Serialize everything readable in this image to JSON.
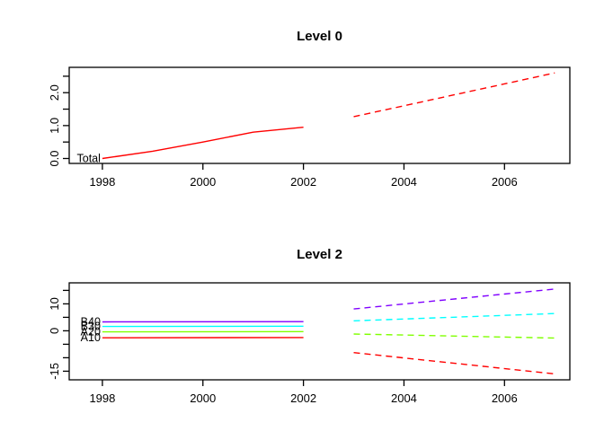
{
  "page": {
    "background": "#ffffff",
    "frame_color": "#000000",
    "text_color": "#000000"
  },
  "chart_data": [
    {
      "type": "line",
      "title": "Level 0",
      "xlabel": "",
      "ylabel": "",
      "grid": false,
      "legend_position": "none",
      "xlim": [
        1997.34,
        2007.3
      ],
      "ylim": [
        -0.15,
        2.77
      ],
      "x_ticks": [
        {
          "v": 1998,
          "label": "1998"
        },
        {
          "v": 2000,
          "label": "2000"
        },
        {
          "v": 2002,
          "label": "2002"
        },
        {
          "v": 2004,
          "label": "2004"
        },
        {
          "v": 2006,
          "label": "2006"
        }
      ],
      "y_ticks": [
        {
          "v": 0.0,
          "label": "0.0"
        },
        {
          "v": 0.5,
          "label": ""
        },
        {
          "v": 1.0,
          "label": "1.0"
        },
        {
          "v": 1.5,
          "label": ""
        },
        {
          "v": 2.0,
          "label": "2.0"
        },
        {
          "v": 2.5,
          "label": ""
        }
      ],
      "series": [
        {
          "name": "Total",
          "color": "#FF0000",
          "history_x": [
            1998,
            1999,
            2000,
            2001,
            2002
          ],
          "history_y": [
            0.0,
            0.22,
            0.5,
            0.8,
            0.95
          ],
          "forecast_x": [
            2003,
            2007
          ],
          "forecast_y": [
            1.27,
            2.6
          ]
        }
      ]
    },
    {
      "type": "line",
      "title": "Level 2",
      "xlabel": "",
      "ylabel": "",
      "grid": false,
      "legend_position": "none",
      "xlim": [
        1997.34,
        2007.3
      ],
      "ylim": [
        -18.2,
        17.8
      ],
      "x_ticks": [
        {
          "v": 1998,
          "label": "1998"
        },
        {
          "v": 2000,
          "label": "2000"
        },
        {
          "v": 2002,
          "label": "2002"
        },
        {
          "v": 2004,
          "label": "2004"
        },
        {
          "v": 2006,
          "label": "2006"
        }
      ],
      "y_ticks": [
        {
          "v": -15,
          "label": "-15"
        },
        {
          "v": -10,
          "label": ""
        },
        {
          "v": -5,
          "label": ""
        },
        {
          "v": 0,
          "label": "0"
        },
        {
          "v": 5,
          "label": ""
        },
        {
          "v": 10,
          "label": "10"
        },
        {
          "v": 15,
          "label": ""
        }
      ],
      "series": [
        {
          "name": "A10",
          "color": "#FF0000",
          "history_x": [
            1998,
            2002
          ],
          "history_y": [
            -2.6,
            -2.5
          ],
          "forecast_x": [
            2003,
            2007
          ],
          "forecast_y": [
            -8.1,
            -16.0
          ]
        },
        {
          "name": "A20",
          "color": "#80FF00",
          "history_x": [
            1998,
            2002
          ],
          "history_y": [
            -0.4,
            -0.3
          ],
          "forecast_x": [
            2003,
            2007
          ],
          "forecast_y": [
            -1.2,
            -2.7
          ]
        },
        {
          "name": "B30",
          "color": "#00FFFF",
          "history_x": [
            1998,
            2002
          ],
          "history_y": [
            1.6,
            1.7
          ],
          "forecast_x": [
            2003,
            2007
          ],
          "forecast_y": [
            3.7,
            6.4
          ]
        },
        {
          "name": "B40",
          "color": "#8000FF",
          "history_x": [
            1998,
            2002
          ],
          "history_y": [
            3.3,
            3.4
          ],
          "forecast_x": [
            2003,
            2007
          ],
          "forecast_y": [
            8.1,
            15.5
          ]
        }
      ]
    }
  ]
}
